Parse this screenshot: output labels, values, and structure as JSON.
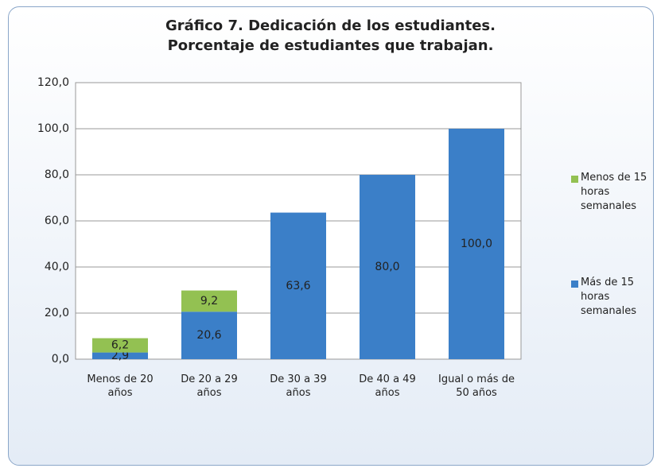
{
  "chart_data": {
    "type": "bar",
    "stacked": true,
    "title": [
      "Gráfico 7. Dedicación de los estudiantes.",
      "Porcentaje de estudiantes que trabajan."
    ],
    "categories": [
      "Menos de 20 años",
      "De 20 a 29 años",
      "De 30 a 39 años",
      "De 40 a 49 años",
      "Igual o más de 50 años"
    ],
    "series": [
      {
        "name": "Más de 15 horas semanales",
        "color": "#3b7fc8",
        "values": [
          2.9,
          20.6,
          63.6,
          80.0,
          100.0
        ],
        "value_labels": [
          "2,9",
          "20,6",
          "63,6",
          "80,0",
          "100,0"
        ]
      },
      {
        "name": "Menos de 15 horas semanales",
        "color": "#93c152",
        "values": [
          6.2,
          9.2,
          null,
          null,
          null
        ],
        "value_labels": [
          "6,2",
          "9,2",
          null,
          null,
          null
        ]
      }
    ],
    "ylim": [
      0,
      120
    ],
    "yticks": [
      {
        "value": 0,
        "label": "0,0"
      },
      {
        "value": 20,
        "label": "20,0"
      },
      {
        "value": 40,
        "label": "40,0"
      },
      {
        "value": 60,
        "label": "60,0"
      },
      {
        "value": 80,
        "label": "80,0"
      },
      {
        "value": 100,
        "label": "100,0"
      },
      {
        "value": 120,
        "label": "120,0"
      }
    ],
    "grid": true,
    "legend": "right"
  }
}
